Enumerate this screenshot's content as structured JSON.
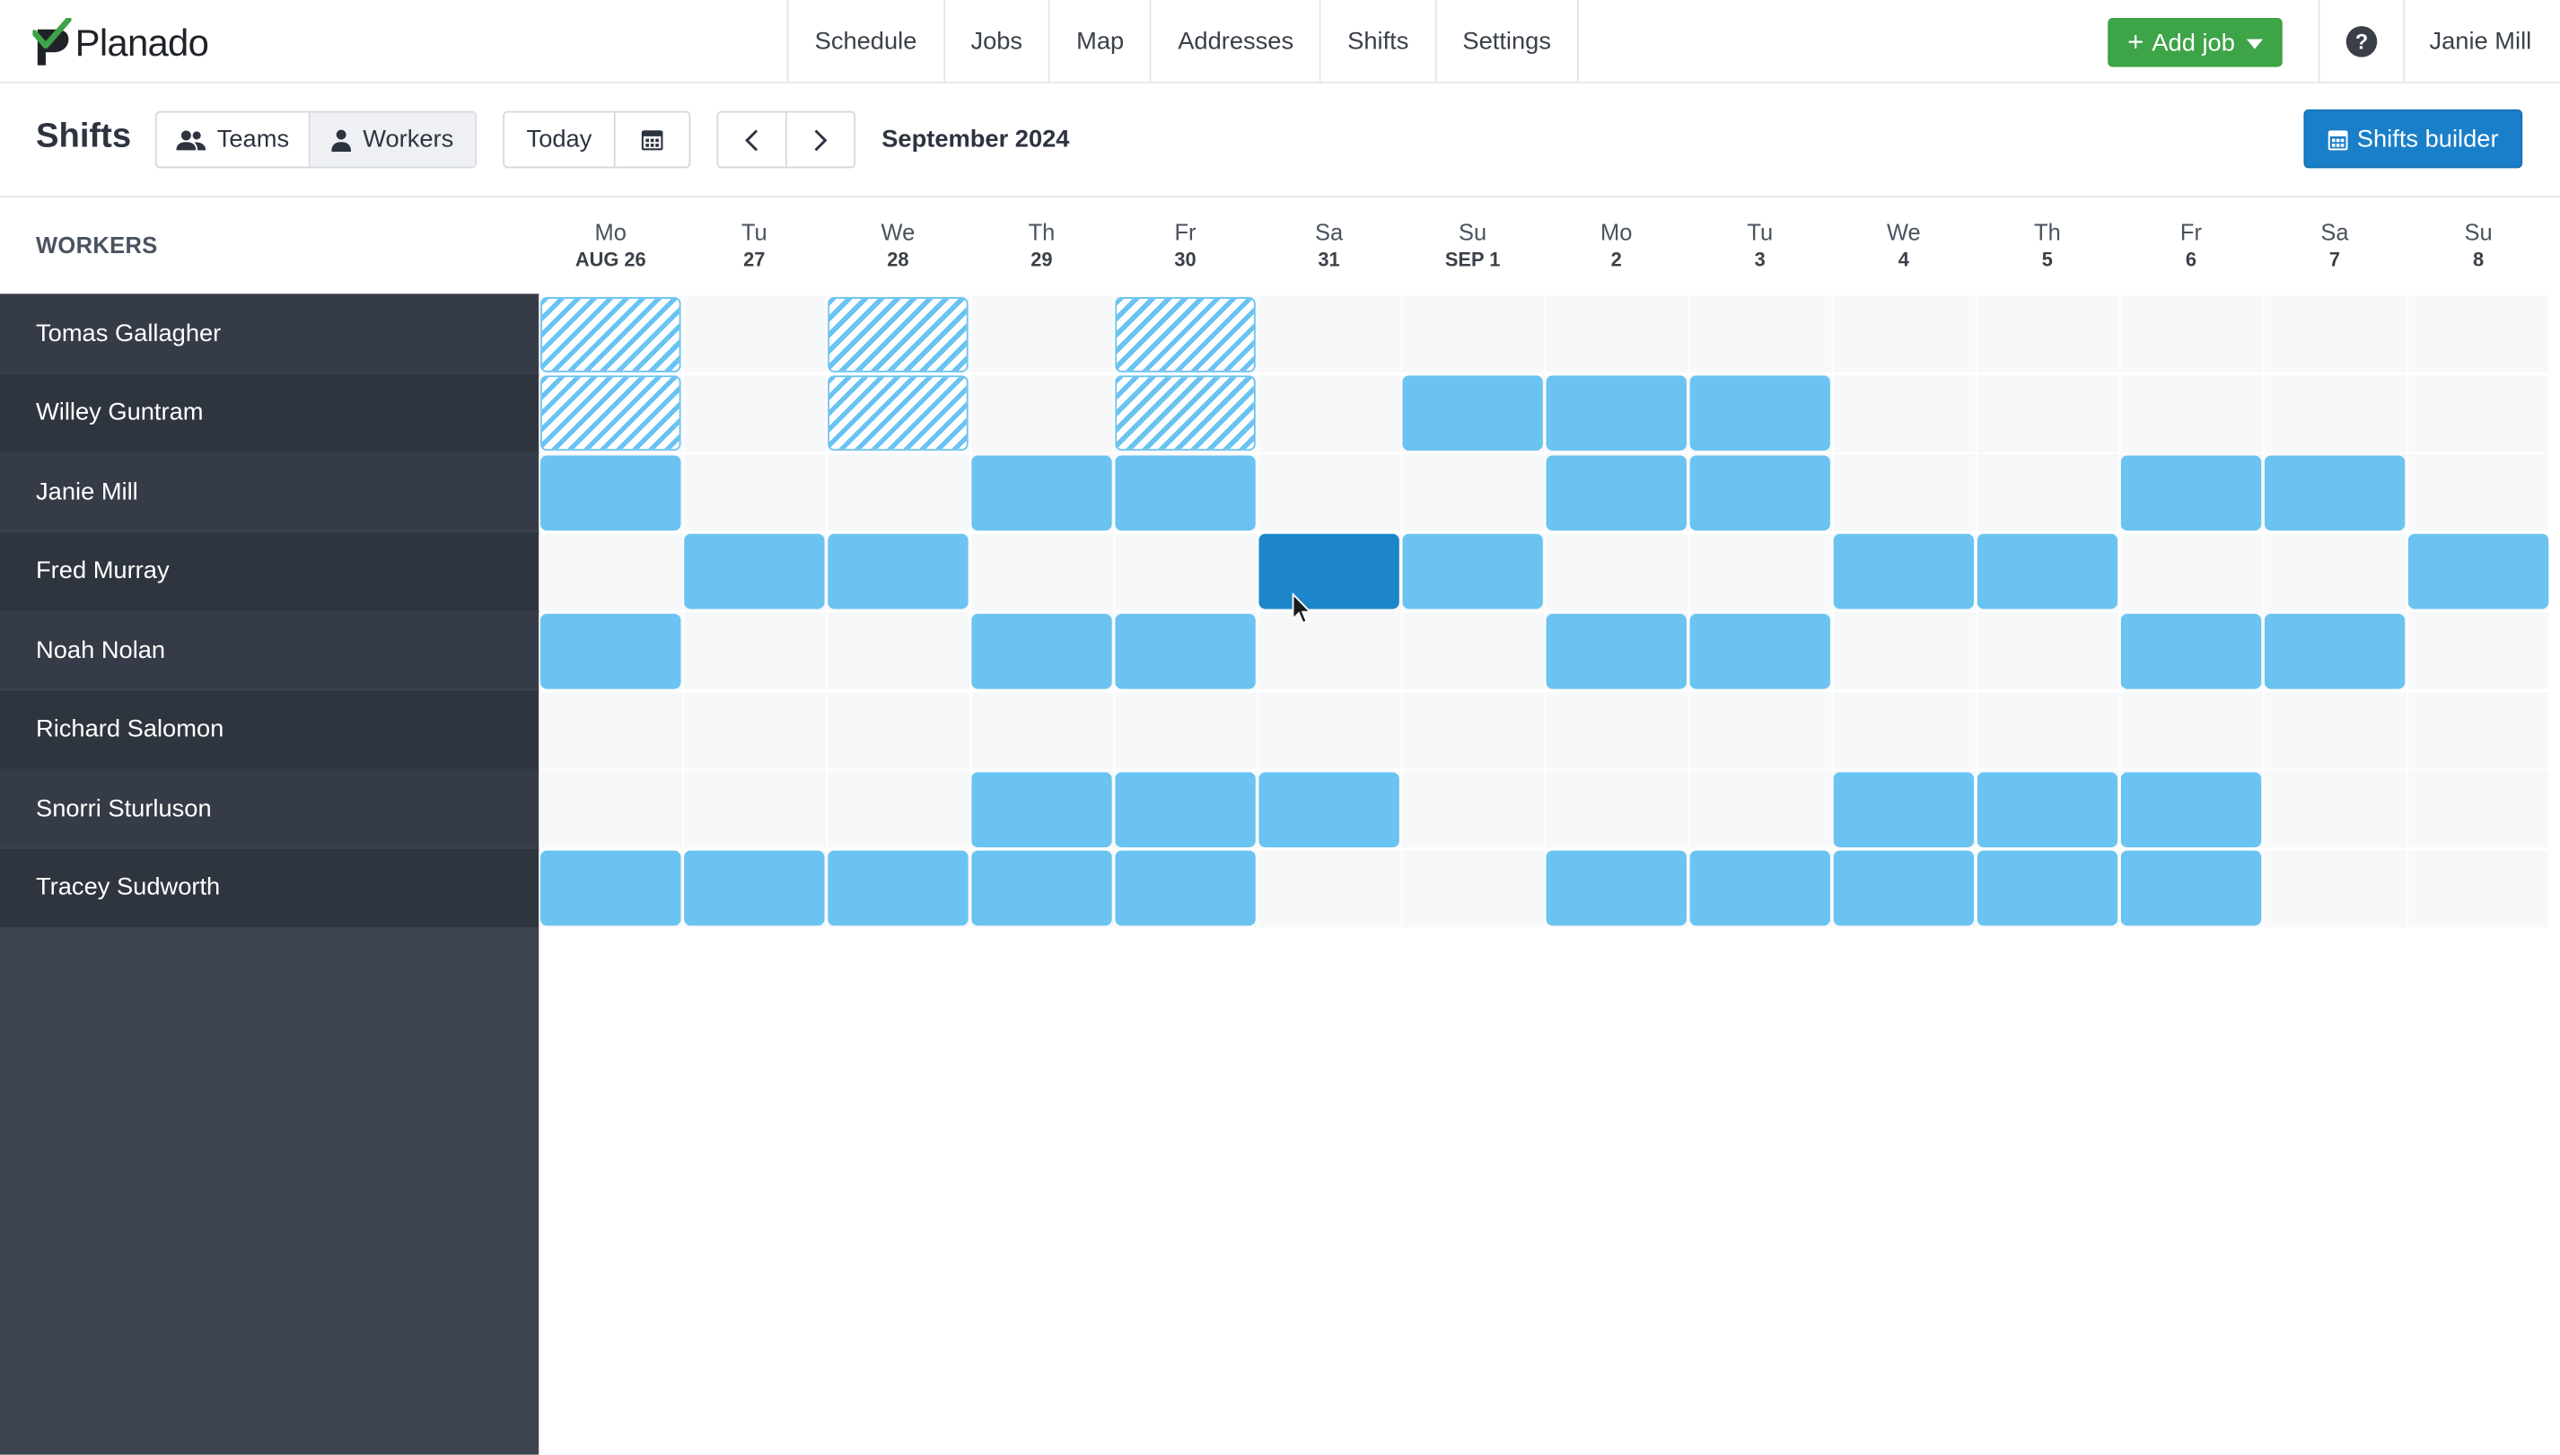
{
  "app": {
    "name": "Planado",
    "brand_color": "#3da447"
  },
  "nav": {
    "items": [
      "Schedule",
      "Jobs",
      "Map",
      "Addresses",
      "Shifts",
      "Settings"
    ]
  },
  "header": {
    "add_job": "Add job",
    "help": "?",
    "user": "Janie Mill"
  },
  "toolbar": {
    "title": "Shifts",
    "view_teams": "Teams",
    "view_workers": "Workers",
    "today": "Today",
    "month": "September 2024",
    "builder": "Shifts builder"
  },
  "grid": {
    "workers_label": "WORKERS",
    "days": [
      {
        "dow": "Mo",
        "date": "AUG 26"
      },
      {
        "dow": "Tu",
        "date": "27"
      },
      {
        "dow": "We",
        "date": "28"
      },
      {
        "dow": "Th",
        "date": "29"
      },
      {
        "dow": "Fr",
        "date": "30"
      },
      {
        "dow": "Sa",
        "date": "31"
      },
      {
        "dow": "Su",
        "date": "SEP 1"
      },
      {
        "dow": "Mo",
        "date": "2"
      },
      {
        "dow": "Tu",
        "date": "3"
      },
      {
        "dow": "We",
        "date": "4"
      },
      {
        "dow": "Th",
        "date": "5"
      },
      {
        "dow": "Fr",
        "date": "6"
      },
      {
        "dow": "Sa",
        "date": "7"
      },
      {
        "dow": "Su",
        "date": "8"
      }
    ],
    "workers": [
      {
        "name": "Tomas Gallagher",
        "shifts": "h.h.h........."
      },
      {
        "name": "Willey Guntram",
        "shifts": "h.h.h.sss....."
      },
      {
        "name": "Janie Mill",
        "shifts": "s..ss..ss..ss."
      },
      {
        "name": "Fred Murray",
        "shifts": ".ss..xs..ss..s"
      },
      {
        "name": "Noah Nolan",
        "shifts": "s..ss..ss..ss."
      },
      {
        "name": "Richard Salomon",
        "shifts": ".............."
      },
      {
        "name": "Snorri Sturluson",
        "shifts": "...sss...sss.."
      },
      {
        "name": "Tracey Sudworth",
        "shifts": "sssss..sssss.."
      }
    ]
  }
}
